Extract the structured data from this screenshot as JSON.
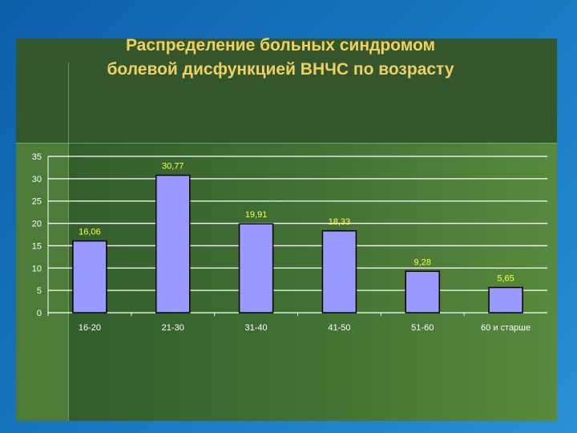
{
  "chart_data": {
    "type": "bar",
    "title": "Распределение больных синдромом болевой дисфункцией ВНЧС по возрасту",
    "title_lines": [
      "Распределение больных синдромом",
      "болевой дисфункцией ВНЧС по возрасту"
    ],
    "categories": [
      "16-20",
      "21-30",
      "31-40",
      "41-50",
      "51-60",
      "60 и старше"
    ],
    "values": [
      16.06,
      30.77,
      19.91,
      18.33,
      9.28,
      5.65
    ],
    "data_labels": [
      "16,06",
      "30,77",
      "19,91",
      "18,33",
      "9,28",
      "5,65"
    ],
    "ylim": [
      0,
      35
    ],
    "yticks": [
      0,
      5,
      10,
      15,
      20,
      25,
      30,
      35
    ],
    "xlabel": "",
    "ylabel": "",
    "grid": true,
    "legend": "none",
    "colors": {
      "bar": "#9999ff",
      "bar_outline": "#000000",
      "data_label": "#ffff40",
      "title": "#f0d060",
      "grid": "#ffffff"
    }
  }
}
